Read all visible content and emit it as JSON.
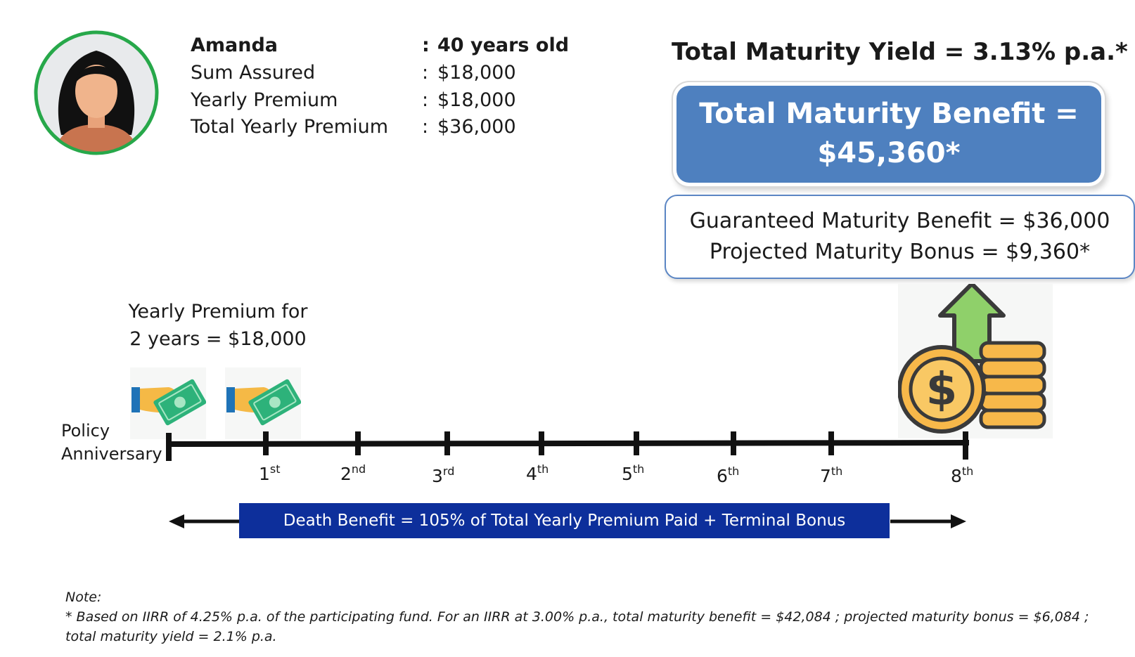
{
  "profile": {
    "name": "Amanda",
    "age": "40 years old",
    "rows": [
      {
        "label": "Sum Assured",
        "value": "$18,000"
      },
      {
        "label": "Yearly Premium",
        "value": "$18,000"
      },
      {
        "label": "Total Yearly Premium",
        "value": "$36,000"
      }
    ],
    "colon": ":"
  },
  "summary": {
    "yield": "Total Maturity Yield = 3.13% p.a.*",
    "benefit_line1": "Total Maturity Benefit =",
    "benefit_line2": "$45,360*",
    "guaranteed": "Guaranteed Maturity Benefit = $36,000",
    "projected": "Projected Maturity Bonus =  $9,360*"
  },
  "timeline": {
    "premium_caption_line1": "Yearly Premium for",
    "premium_caption_line2": "2 years = $18,000",
    "start_label_line1": "Policy",
    "start_label_line2": "Anniversary",
    "ticks": [
      {
        "num": "1",
        "suffix": "st"
      },
      {
        "num": "2",
        "suffix": "nd"
      },
      {
        "num": "3",
        "suffix": "rd"
      },
      {
        "num": "4",
        "suffix": "th"
      },
      {
        "num": "5",
        "suffix": "th"
      },
      {
        "num": "6",
        "suffix": "th"
      },
      {
        "num": "7",
        "suffix": "th"
      },
      {
        "num": "8",
        "suffix": "th"
      }
    ],
    "death_benefit": "Death Benefit = 105% of Total Yearly Premium Paid + Terminal Bonus"
  },
  "note": {
    "title": "Note:",
    "text": "* Based on IIRR of 4.25% p.a. of the participating fund. For an IIRR at 3.00% p.a., total maturity benefit = $42,084 ; projected maturity bonus = $6,084 ; total maturity yield = 2.1% p.a."
  },
  "colors": {
    "benefit_box": "#4e80bf",
    "death_bar": "#0d2f9b",
    "avatar_ring": "#27a84a",
    "arrow_green": "#8fd06a",
    "coin_gold": "#f7b84a",
    "cash_green": "#2db27a"
  },
  "icons": {
    "avatar": "woman-avatar-icon",
    "payment": "hand-paying-cash-icon",
    "maturity": "coins-growth-icon"
  }
}
